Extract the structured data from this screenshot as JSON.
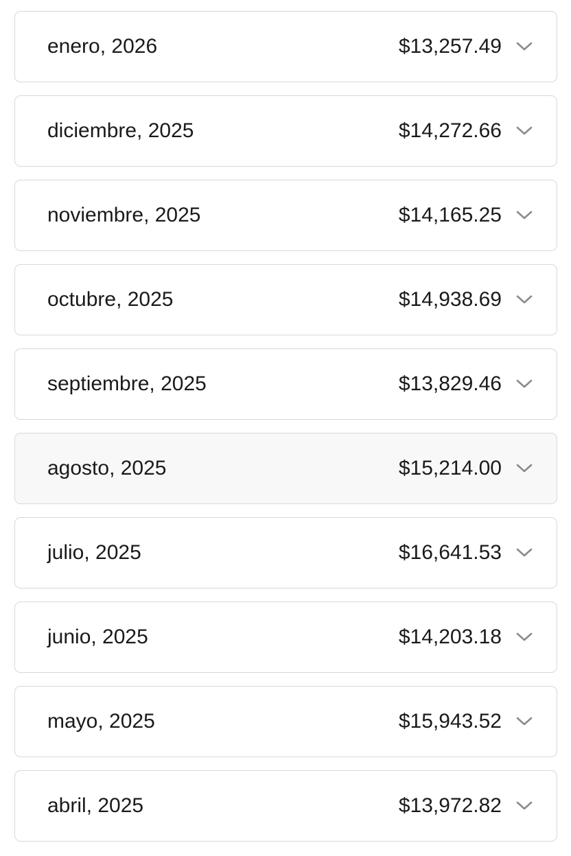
{
  "months": [
    {
      "label": "enero, 2026",
      "amount": "$13,257.49"
    },
    {
      "label": "diciembre, 2025",
      "amount": "$14,272.66"
    },
    {
      "label": "noviembre, 2025",
      "amount": "$14,165.25"
    },
    {
      "label": "octubre, 2025",
      "amount": "$14,938.69"
    },
    {
      "label": "septiembre, 2025",
      "amount": "$13,829.46"
    },
    {
      "label": "agosto, 2025",
      "amount": "$15,214.00"
    },
    {
      "label": "julio, 2025",
      "amount": "$16,641.53"
    },
    {
      "label": "junio, 2025",
      "amount": "$14,203.18"
    },
    {
      "label": "mayo, 2025",
      "amount": "$15,943.52"
    },
    {
      "label": "abril, 2025",
      "amount": "$13,972.82"
    }
  ],
  "hovered_index": 5,
  "icon": "chevron-down-icon",
  "colors": {
    "border": "#d8d8d8",
    "chevron": "#8a8a8a",
    "hover_bg": "#f8f8f8"
  }
}
